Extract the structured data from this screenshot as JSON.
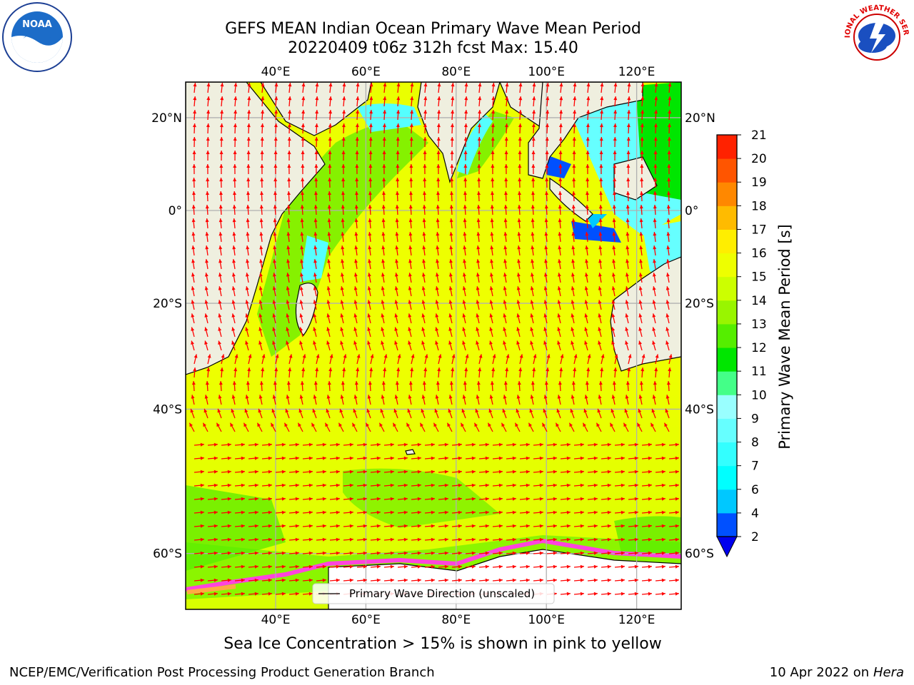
{
  "title": {
    "line1": "GEFS MEAN Indian Ocean Primary Wave Mean Period",
    "line2": "20220409 t06z 312h fcst   Max: 15.40"
  },
  "axes": {
    "lon_labels": [
      "40°E",
      "60°E",
      "80°E",
      "100°E",
      "120°E"
    ],
    "lat_labels": [
      "20°N",
      "0°",
      "20°S",
      "40°S",
      "60°S"
    ],
    "lon_values": [
      40,
      60,
      80,
      100,
      120
    ],
    "lat_values": [
      20,
      0,
      -20,
      -40,
      -60
    ]
  },
  "colorbar": {
    "label": "Primary Wave Mean Period [s]",
    "levels": [
      2,
      4,
      6,
      7,
      8,
      9,
      10,
      11,
      12,
      13,
      14,
      15,
      16,
      17,
      18,
      19,
      20,
      21
    ],
    "tick_labels": [
      "21",
      "20",
      "19",
      "18",
      "17",
      "16",
      "15",
      "14",
      "13",
      "12",
      "11",
      "10",
      "9",
      "8",
      "7",
      "6",
      "4",
      "2"
    ],
    "colors": [
      "#0050ff",
      "#00c8ff",
      "#00ffff",
      "#33ffff",
      "#66ffff",
      "#99ffff",
      "#44ff88",
      "#00e600",
      "#55ee00",
      "#99f500",
      "#ccff00",
      "#eeff00",
      "#ffee00",
      "#ffbb00",
      "#ff8800",
      "#ff5500",
      "#ff2200"
    ],
    "extend_color": "#0000ee"
  },
  "legend": {
    "label": "Primary Wave Direction (unscaled)"
  },
  "colors": {
    "land": "#efefdf",
    "ocean_main": "#e6ff00",
    "arrow": "#ff0000",
    "grid": "#b0b0b0"
  },
  "logos": {
    "noaa_text": "NOAA",
    "nws_text": "NATIONAL WEATHER SERVICE"
  },
  "caption": "Sea Ice Concentration > 15% is shown in pink to yellow",
  "footer": {
    "left": "NCEP/EMC/Verification Post Processing Product Generation Branch",
    "right_date": "10 Apr 2022 on ",
    "right_host": "Hera"
  }
}
